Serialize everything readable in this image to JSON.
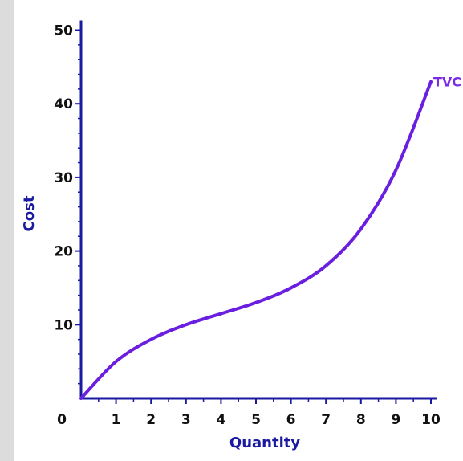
{
  "chart_data": {
    "type": "line",
    "title": "",
    "xlabel": "Quantity",
    "ylabel": "Cost",
    "xlim": [
      0,
      10
    ],
    "ylim": [
      0,
      50
    ],
    "x_ticks": [
      0,
      1,
      2,
      3,
      4,
      5,
      6,
      7,
      8,
      9,
      10
    ],
    "y_ticks": [
      10,
      20,
      30,
      40,
      50
    ],
    "grid": false,
    "legend": "none",
    "series": [
      {
        "name": "TVC",
        "x": [
          0,
          1,
          2,
          3,
          4,
          5,
          6,
          7,
          8,
          9,
          10
        ],
        "values": [
          0,
          5,
          8,
          10,
          11.5,
          13,
          15,
          18,
          23,
          31,
          43
        ]
      }
    ],
    "colors": {
      "curve": "#6a1fe0",
      "axis": "#1a1aa0",
      "axis_title": "#1a1aa0",
      "tick_label": "#111111",
      "series_label": "#7a2be6"
    }
  }
}
